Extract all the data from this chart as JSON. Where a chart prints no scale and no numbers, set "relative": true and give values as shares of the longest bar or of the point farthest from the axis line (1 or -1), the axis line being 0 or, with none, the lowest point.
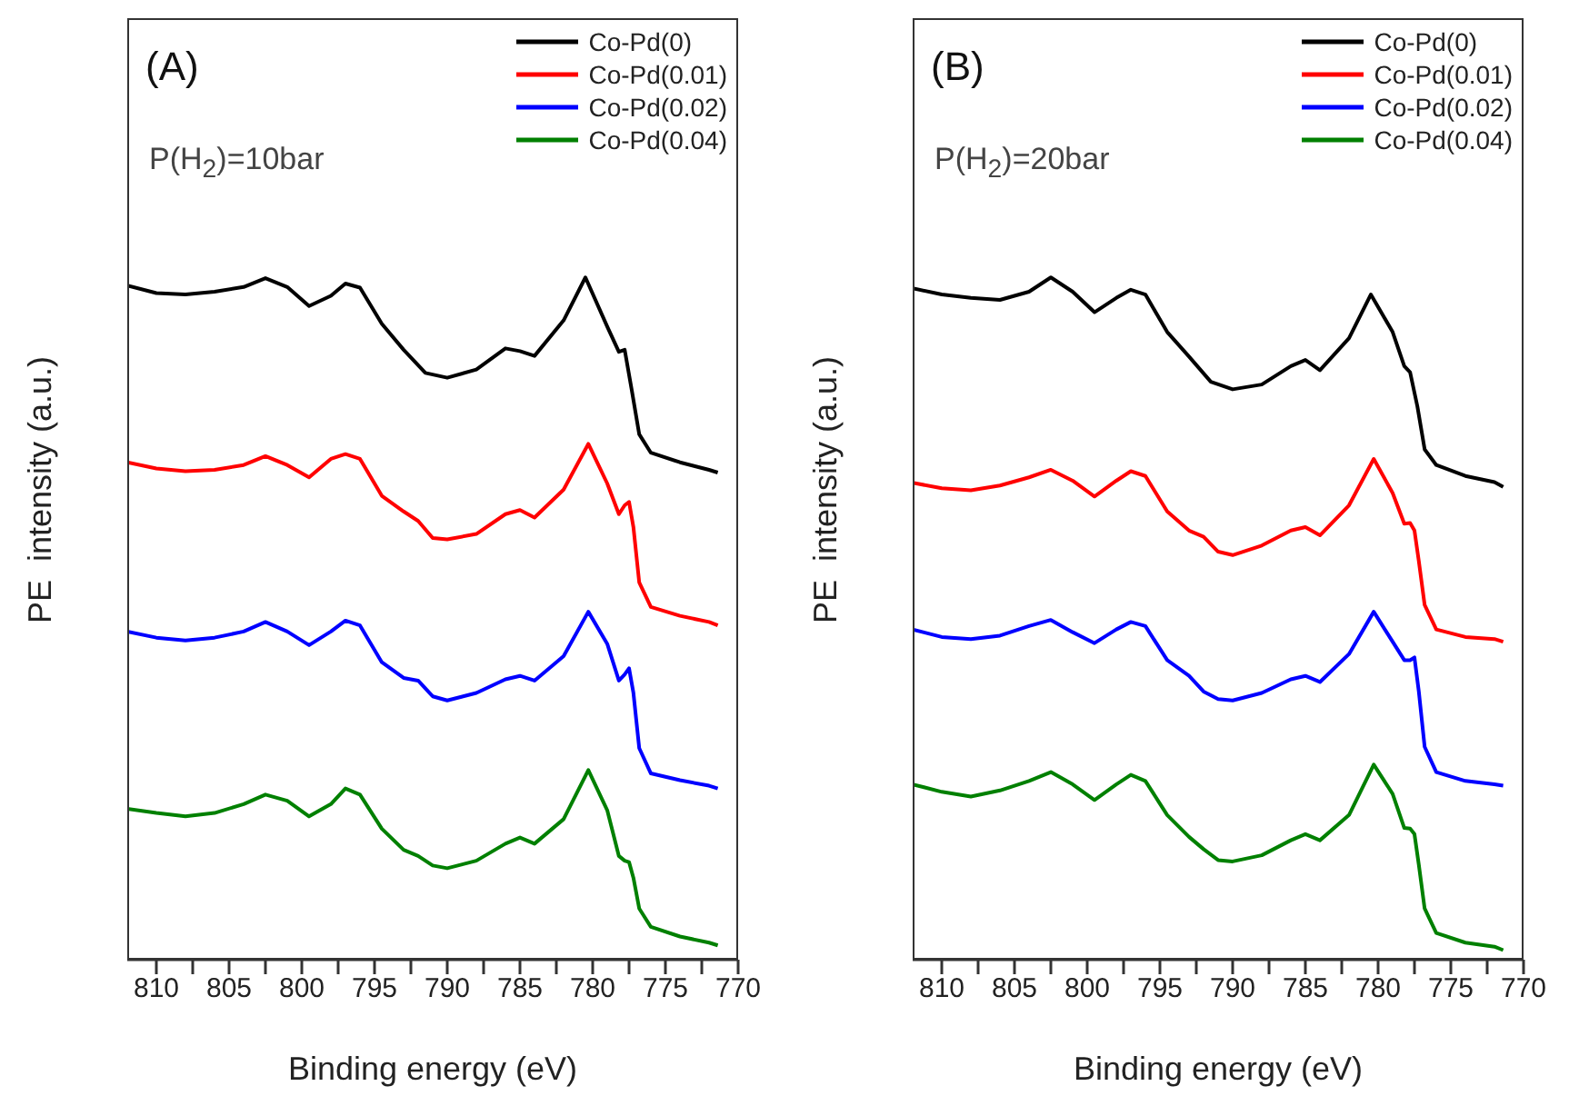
{
  "chart_data": [
    {
      "type": "line",
      "relative": true,
      "xlabel": "Binding energy (eV)",
      "ylabel": "PE  intensity (a.u.)",
      "annotations": [
        "(A)",
        "P(H$_{2}$)=10bar"
      ],
      "legend": "top right",
      "marker": "none",
      "line_style": "solid",
      "grid": false,
      "xlim": [
        812,
        770
      ],
      "xticks": [
        810,
        {
          "value": 807.5,
          "label": null
        },
        805,
        {
          "value": 802.5,
          "label": null
        },
        800,
        {
          "value": 797.5,
          "label": null
        },
        795,
        {
          "value": 792.5,
          "label": null
        },
        790,
        {
          "value": 787.5,
          "label": null
        },
        785,
        {
          "value": 782.5,
          "label": null
        },
        780,
        {
          "value": 777.5,
          "label": null
        },
        775,
        {
          "value": 772.5,
          "label": null
        },
        770
      ],
      "x": [
        812,
        810,
        808,
        806,
        804,
        802.5,
        801,
        799.5,
        798,
        797,
        796,
        794.5,
        793,
        792,
        791,
        790,
        788,
        786,
        785,
        784,
        782,
        780.3,
        779,
        778.2,
        777.8,
        777.5,
        777.2,
        776.8,
        776,
        774,
        772,
        771.4
      ],
      "series": [
        {
          "name": "Co-Pd(0)",
          "color": "#000000",
          "x": [
            812,
            810,
            808,
            806,
            804,
            802.5,
            801,
            799.5,
            798,
            797,
            796,
            794.5,
            793,
            791.5,
            790,
            788,
            786,
            785,
            784,
            782,
            780.5,
            779,
            778.2,
            777.8,
            777.3,
            776.8,
            776,
            774,
            772,
            771.4
          ],
          "values": [
            0.988,
            0.977,
            0.975,
            0.979,
            0.986,
            0.999,
            0.986,
            0.958,
            0.973,
            0.991,
            0.985,
            0.932,
            0.894,
            0.86,
            0.853,
            0.865,
            0.896,
            0.892,
            0.885,
            0.937,
            1.0,
            0.928,
            0.891,
            0.894,
            0.833,
            0.77,
            0.743,
            0.729,
            0.718,
            0.714
          ]
        },
        {
          "name": "Co-Pd(0.01)",
          "color": "#ff0000",
          "values": [
            0.729,
            0.72,
            0.716,
            0.718,
            0.725,
            0.738,
            0.725,
            0.707,
            0.734,
            0.741,
            0.734,
            0.68,
            0.657,
            0.643,
            0.618,
            0.616,
            0.624,
            0.653,
            0.659,
            0.648,
            0.689,
            0.756,
            0.698,
            0.653,
            0.666,
            0.671,
            0.634,
            0.553,
            0.517,
            0.504,
            0.495,
            0.49
          ]
        },
        {
          "name": "Co-Pd(0.02)",
          "color": "#0000ff",
          "values": [
            0.481,
            0.472,
            0.468,
            0.472,
            0.481,
            0.495,
            0.481,
            0.461,
            0.481,
            0.497,
            0.49,
            0.436,
            0.413,
            0.409,
            0.386,
            0.38,
            0.391,
            0.411,
            0.416,
            0.409,
            0.445,
            0.51,
            0.463,
            0.409,
            0.418,
            0.427,
            0.391,
            0.31,
            0.273,
            0.263,
            0.255,
            0.251
          ]
        },
        {
          "name": "Co-Pd(0.04)",
          "color": "#008000",
          "values": [
            0.221,
            0.215,
            0.21,
            0.215,
            0.228,
            0.242,
            0.233,
            0.21,
            0.228,
            0.251,
            0.242,
            0.192,
            0.161,
            0.152,
            0.138,
            0.134,
            0.145,
            0.17,
            0.179,
            0.17,
            0.206,
            0.278,
            0.219,
            0.152,
            0.145,
            0.143,
            0.12,
            0.075,
            0.048,
            0.034,
            0.025,
            0.021
          ]
        }
      ]
    },
    {
      "type": "line",
      "relative": true,
      "xlabel": "Binding energy (eV)",
      "ylabel": "PE  intensity (a.u.)",
      "annotations": [
        "(B)",
        "P(H$_{2}$)=20bar"
      ],
      "legend": "top right",
      "marker": "none",
      "line_style": "solid",
      "grid": false,
      "xlim": [
        812,
        770
      ],
      "xticks": [
        810,
        {
          "value": 807.5,
          "label": null
        },
        805,
        {
          "value": 802.5,
          "label": null
        },
        800,
        {
          "value": 797.5,
          "label": null
        },
        795,
        {
          "value": 792.5,
          "label": null
        },
        790,
        {
          "value": 787.5,
          "label": null
        },
        785,
        {
          "value": 782.5,
          "label": null
        },
        780,
        {
          "value": 777.5,
          "label": null
        },
        775,
        {
          "value": 772.5,
          "label": null
        },
        770
      ],
      "x": [
        812,
        810,
        808,
        806,
        804,
        802.5,
        801,
        799.5,
        798,
        797,
        796,
        794.5,
        793,
        792,
        791,
        790,
        788,
        786,
        785,
        784,
        782,
        780.3,
        779,
        778.2,
        777.8,
        777.5,
        777.2,
        776.8,
        776,
        774,
        772,
        771.4
      ],
      "series": [
        {
          "name": "Co-Pd(0)",
          "color": "#000000",
          "x": [
            812,
            810,
            808,
            806,
            804,
            802.5,
            801,
            799.5,
            798,
            797,
            796,
            794.5,
            793,
            791.5,
            790,
            788,
            786,
            785,
            784,
            782,
            780.5,
            779,
            778.2,
            777.8,
            777.3,
            776.8,
            776,
            774,
            772,
            771.4
          ],
          "values": [
            0.984,
            0.975,
            0.97,
            0.967,
            0.979,
            1.0,
            0.979,
            0.949,
            0.97,
            0.982,
            0.975,
            0.92,
            0.884,
            0.847,
            0.836,
            0.843,
            0.87,
            0.879,
            0.864,
            0.911,
            0.975,
            0.92,
            0.87,
            0.861,
            0.811,
            0.748,
            0.725,
            0.709,
            0.7,
            0.693
          ]
        },
        {
          "name": "Co-Pd(0.01)",
          "color": "#ff0000",
          "values": [
            0.699,
            0.691,
            0.688,
            0.695,
            0.707,
            0.718,
            0.702,
            0.679,
            0.702,
            0.716,
            0.709,
            0.657,
            0.629,
            0.62,
            0.598,
            0.593,
            0.607,
            0.629,
            0.634,
            0.622,
            0.666,
            0.734,
            0.684,
            0.639,
            0.64,
            0.629,
            0.584,
            0.52,
            0.484,
            0.473,
            0.47,
            0.466
          ]
        },
        {
          "name": "Co-Pd(0.02)",
          "color": "#0000ff",
          "values": [
            0.484,
            0.473,
            0.47,
            0.475,
            0.489,
            0.498,
            0.48,
            0.464,
            0.484,
            0.495,
            0.489,
            0.439,
            0.416,
            0.393,
            0.382,
            0.38,
            0.391,
            0.411,
            0.416,
            0.407,
            0.448,
            0.51,
            0.466,
            0.439,
            0.439,
            0.443,
            0.393,
            0.312,
            0.275,
            0.262,
            0.257,
            0.255
          ]
        },
        {
          "name": "Co-Pd(0.04)",
          "color": "#008000",
          "values": [
            0.257,
            0.246,
            0.239,
            0.248,
            0.262,
            0.275,
            0.257,
            0.234,
            0.257,
            0.271,
            0.262,
            0.212,
            0.18,
            0.162,
            0.146,
            0.144,
            0.153,
            0.175,
            0.184,
            0.175,
            0.212,
            0.286,
            0.243,
            0.193,
            0.192,
            0.184,
            0.139,
            0.075,
            0.039,
            0.025,
            0.019,
            0.014
          ]
        }
      ]
    }
  ]
}
